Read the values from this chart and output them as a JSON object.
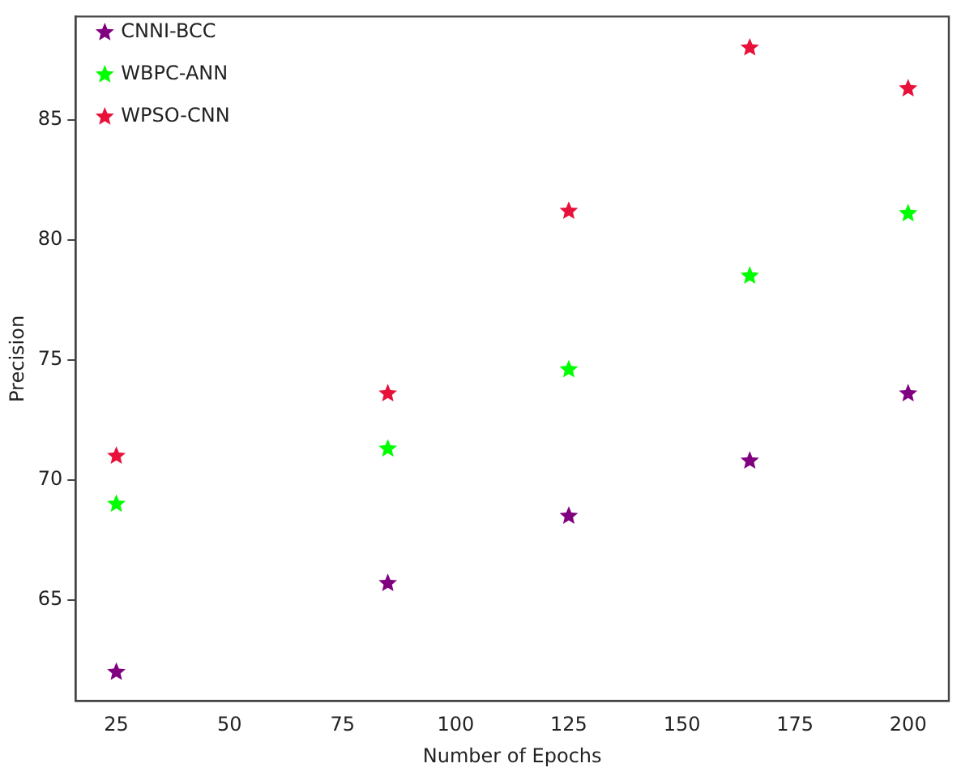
{
  "chart_data": {
    "type": "scatter",
    "xlabel": "Number of Epochs",
    "ylabel": "Precision",
    "x": [
      25,
      85,
      125,
      165,
      200
    ],
    "series": [
      {
        "name": "CNNI-BCC",
        "color": "#800080",
        "values": [
          62,
          65.7,
          68.5,
          70.8,
          73.6
        ]
      },
      {
        "name": "WBPC-ANN",
        "color": "#00ff00",
        "values": [
          69,
          71.3,
          74.6,
          78.5,
          81.1
        ]
      },
      {
        "name": "WPSO-CNN",
        "color": "#e8113a",
        "values": [
          71,
          73.6,
          81.2,
          88,
          86.3
        ]
      }
    ],
    "xlim": [
      16,
      209
    ],
    "xticks": [
      25,
      50,
      75,
      100,
      125,
      150,
      175,
      200
    ],
    "ylim": [
      60.8,
      89.3
    ],
    "yticks": [
      65,
      70,
      75,
      80,
      85
    ],
    "grid": false,
    "legend": "top left",
    "marker": "star"
  }
}
